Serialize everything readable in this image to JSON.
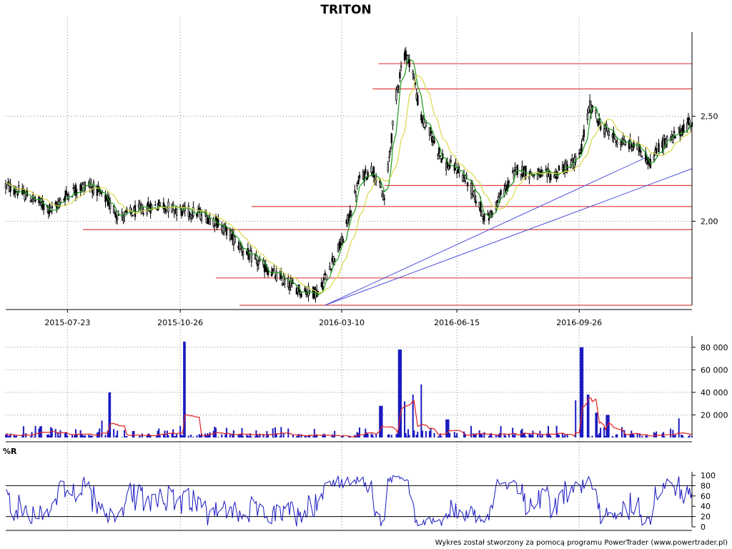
{
  "chart_data": [
    {
      "type": "candlestick",
      "title": "TRITON",
      "x_ticks": [
        "2015-07-23",
        "2015-10-26",
        "2016-03-10",
        "2016-06-15",
        "2016-09-26"
      ],
      "x_range": [
        "2015-06-01",
        "2016-12-30"
      ],
      "y_ticks": [
        "2,00",
        "2,50"
      ],
      "y_tick_values": [
        2.0,
        2.5
      ],
      "ylim": [
        1.6,
        2.9
      ],
      "grid": true,
      "close_anchors": [
        [
          "2015-06-01",
          2.17
        ],
        [
          "2015-06-20",
          2.12
        ],
        [
          "2015-07-10",
          2.05
        ],
        [
          "2015-07-23",
          2.13
        ],
        [
          "2015-08-10",
          2.18
        ],
        [
          "2015-08-25",
          2.1
        ],
        [
          "2015-09-05",
          2.02
        ],
        [
          "2015-09-20",
          2.05
        ],
        [
          "2015-10-10",
          2.08
        ],
        [
          "2015-10-26",
          2.05
        ],
        [
          "2015-11-10",
          2.04
        ],
        [
          "2015-11-25",
          2.0
        ],
        [
          "2015-12-05",
          1.95
        ],
        [
          "2015-12-20",
          1.85
        ],
        [
          "2016-01-05",
          1.78
        ],
        [
          "2016-01-20",
          1.72
        ],
        [
          "2016-02-05",
          1.67
        ],
        [
          "2016-02-20",
          1.66
        ],
        [
          "2016-03-01",
          1.8
        ],
        [
          "2016-03-10",
          1.9
        ],
        [
          "2016-03-25",
          2.2
        ],
        [
          "2016-04-05",
          2.25
        ],
        [
          "2016-04-15",
          2.1
        ],
        [
          "2016-04-25",
          2.6
        ],
        [
          "2016-05-01",
          2.8
        ],
        [
          "2016-05-08",
          2.75
        ],
        [
          "2016-05-15",
          2.5
        ],
        [
          "2016-05-25",
          2.4
        ],
        [
          "2016-06-05",
          2.27
        ],
        [
          "2016-06-15",
          2.25
        ],
        [
          "2016-06-25",
          2.18
        ],
        [
          "2016-07-10",
          2.0
        ],
        [
          "2016-07-20",
          2.1
        ],
        [
          "2016-08-05",
          2.25
        ],
        [
          "2016-08-20",
          2.22
        ],
        [
          "2016-09-05",
          2.22
        ],
        [
          "2016-09-26",
          2.3
        ],
        [
          "2016-10-05",
          2.55
        ],
        [
          "2016-10-15",
          2.45
        ],
        [
          "2016-10-30",
          2.38
        ],
        [
          "2016-11-15",
          2.35
        ],
        [
          "2016-11-25",
          2.28
        ],
        [
          "2016-12-05",
          2.37
        ],
        [
          "2016-12-15",
          2.4
        ],
        [
          "2016-12-30",
          2.48
        ]
      ],
      "series": [
        {
          "kind": "candles",
          "color": "#000000"
        },
        {
          "kind": "moving-average-fast",
          "color": "#1a9a1a",
          "period": 5
        },
        {
          "kind": "moving-average-slow",
          "color": "#d8d848",
          "period": 15
        }
      ],
      "support_resistance_levels": [
        {
          "from": "2016-04-10",
          "to": "2016-12-30",
          "value": 2.75
        },
        {
          "from": "2016-04-05",
          "to": "2016-12-30",
          "value": 2.63
        },
        {
          "from": "2016-04-15",
          "to": "2016-12-30",
          "value": 2.17
        },
        {
          "from": "2015-12-25",
          "to": "2016-12-30",
          "value": 2.07
        },
        {
          "from": "2015-08-05",
          "to": "2016-12-30",
          "value": 1.96
        },
        {
          "from": "2015-11-25",
          "to": "2016-12-30",
          "value": 1.73
        },
        {
          "from": "2015-12-15",
          "to": "2016-12-30",
          "value": 1.6
        }
      ],
      "level_color": "#e04040",
      "trend_lines": [
        {
          "from": [
            "2016-02-25",
            1.6
          ],
          "to": [
            "2016-11-20",
            2.3
          ]
        },
        {
          "from": [
            "2016-02-25",
            1.6
          ],
          "to": [
            "2016-12-30",
            2.25
          ]
        }
      ],
      "trend_color": "#5050e0"
    },
    {
      "type": "bar",
      "name": "volume",
      "y_ticks": [
        "20 000",
        "40 000",
        "60 000",
        "80 000"
      ],
      "y_tick_values": [
        20000,
        40000,
        60000,
        80000
      ],
      "ylim": [
        0,
        90000
      ],
      "bar_color": "#1a1ac0",
      "ma_color": "#e02020",
      "spikes": [
        [
          "2015-10-30",
          85000
        ],
        [
          "2016-04-28",
          78000
        ],
        [
          "2016-05-15",
          47000
        ],
        [
          "2016-05-08",
          38000
        ],
        [
          "2016-05-01",
          32000
        ],
        [
          "2016-04-12",
          28000
        ],
        [
          "2016-09-28",
          80000
        ],
        [
          "2016-09-24",
          33000
        ],
        [
          "2016-10-03",
          38000
        ],
        [
          "2015-08-28",
          40000
        ],
        [
          "2015-08-22",
          15000
        ],
        [
          "2016-06-07",
          16000
        ],
        [
          "2016-12-18",
          17000
        ],
        [
          "2016-10-20",
          20000
        ],
        [
          "2016-10-10",
          22000
        ]
      ]
    },
    {
      "type": "line",
      "name": "%R",
      "label": "%R",
      "y_ticks": [
        "0",
        "20",
        "40",
        "60",
        "80",
        "100"
      ],
      "y_tick_values": [
        0,
        20,
        40,
        60,
        80,
        100
      ],
      "ylim": [
        0,
        100
      ],
      "reference_lines": [
        20,
        80
      ],
      "line_color": "#1a1ac0"
    }
  ],
  "footer": {
    "credit": "Wykres został stworzony za pomocą programu PowerTrader (www.powertrader.pl)"
  }
}
